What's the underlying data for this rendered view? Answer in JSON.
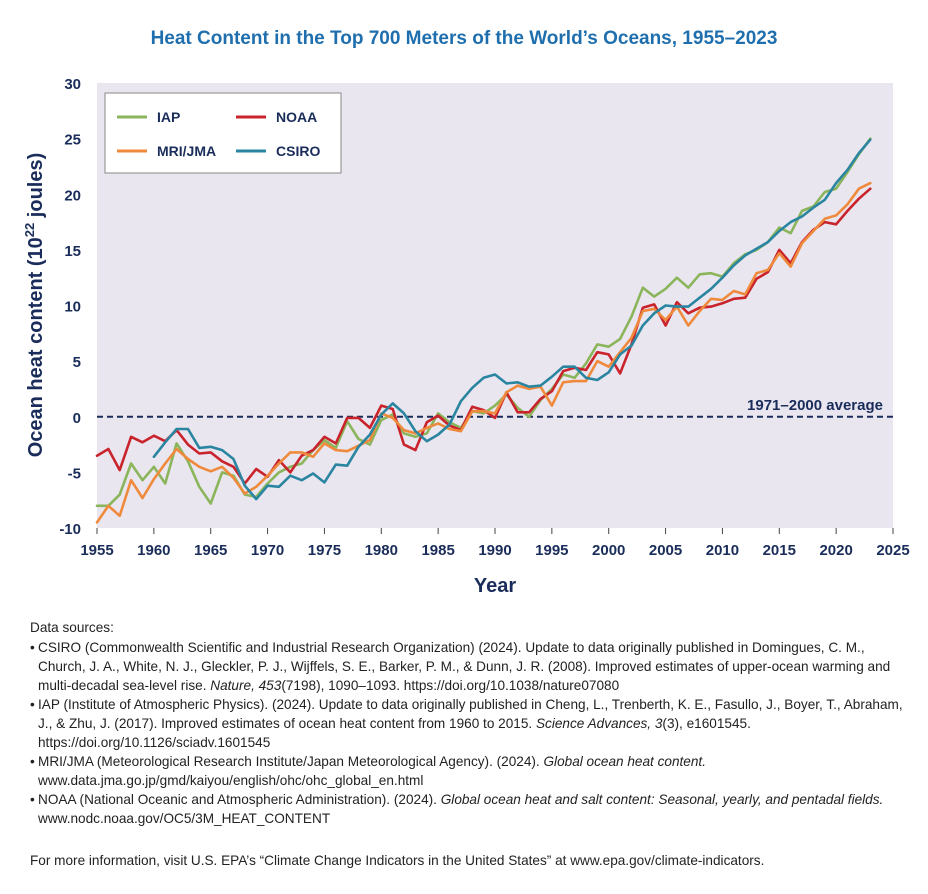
{
  "title": "Heat Content in the Top 700 Meters of the World’s Oceans, 1955–2023",
  "chart_data": {
    "type": "line",
    "title": "Heat Content in the Top 700 Meters of the World’s Oceans, 1955–2023",
    "xlabel": "Year",
    "ylabel": "Ocean heat content (10",
    "ylabel_sup": "22",
    "ylabel_end": " joules)",
    "xlim": [
      1955,
      2025
    ],
    "ylim": [
      -10,
      30
    ],
    "x_ticks": [
      1955,
      1960,
      1965,
      1970,
      1975,
      1980,
      1985,
      1990,
      1995,
      2000,
      2005,
      2010,
      2015,
      2020,
      2025
    ],
    "y_ticks": [
      -10,
      -5,
      0,
      5,
      10,
      15,
      20,
      25,
      30
    ],
    "grid": false,
    "legend_position": "top-left",
    "reference_line": {
      "value": 0,
      "label": "1971–2000 average",
      "color": "#1a2d5a"
    },
    "series": [
      {
        "name": "IAP",
        "color": "#8bb55b",
        "start": 1955,
        "values": [
          -8.0,
          -8.0,
          -7.0,
          -4.2,
          -5.7,
          -4.5,
          -6.0,
          -2.4,
          -4.0,
          -6.3,
          -7.8,
          -5.0,
          -5.3,
          -7.0,
          -7.2,
          -6.0,
          -5.0,
          -4.5,
          -4.2,
          -3.0,
          -2.1,
          -2.8,
          -0.4,
          -2.0,
          -2.5,
          -0.3,
          0.2,
          -1.5,
          -1.8,
          -1.5,
          0.3,
          -0.5,
          -1.0,
          0.5,
          0.3,
          1.0,
          2.0,
          0.8,
          0.0,
          1.5,
          2.5,
          3.8,
          3.5,
          4.8,
          6.5,
          6.3,
          7.0,
          9.0,
          11.6,
          10.8,
          11.5,
          12.5,
          11.6,
          12.8,
          12.9,
          12.6,
          13.8,
          14.6,
          15.0,
          15.7,
          17.0,
          16.5,
          18.5,
          18.9,
          20.2,
          20.5,
          22.0,
          23.6,
          25.0
        ]
      },
      {
        "name": "NOAA",
        "color": "#c9232c",
        "start": 1955,
        "values": [
          -3.5,
          -2.9,
          -4.8,
          -1.8,
          -2.3,
          -1.7,
          -2.2,
          -1.2,
          -2.5,
          -3.3,
          -3.2,
          -4.0,
          -4.5,
          -6.0,
          -4.7,
          -5.4,
          -3.9,
          -5.0,
          -3.5,
          -3.0,
          -1.8,
          -2.4,
          -0.1,
          -0.1,
          -1.0,
          1.0,
          0.7,
          -2.5,
          -3.0,
          -0.5,
          0.1,
          -0.8,
          -1.2,
          0.9,
          0.6,
          -0.1,
          2.2,
          0.4,
          0.4,
          1.6,
          2.3,
          4.1,
          4.4,
          4.2,
          5.8,
          5.6,
          3.9,
          6.5,
          9.8,
          10.1,
          8.2,
          10.3,
          9.3,
          9.8,
          9.9,
          10.2,
          10.6,
          10.7,
          12.4,
          13.0,
          15.0,
          13.8,
          15.7,
          16.8,
          17.5,
          17.3,
          18.5,
          19.6,
          20.5
        ]
      },
      {
        "name": "MRI/JMA",
        "color": "#ef8a3c",
        "start": 1955,
        "values": [
          -9.5,
          -8.0,
          -8.9,
          -5.7,
          -7.3,
          -5.6,
          -4.2,
          -2.9,
          -3.8,
          -4.5,
          -4.9,
          -4.5,
          -5.5,
          -6.9,
          -6.3,
          -5.3,
          -4.2,
          -3.2,
          -3.2,
          -3.6,
          -2.4,
          -3.0,
          -3.1,
          -2.6,
          -2.1,
          0.3,
          -0.1,
          -1.2,
          -1.5,
          -1.0,
          -0.6,
          -1.1,
          -1.3,
          0.5,
          0.5,
          0.3,
          2.2,
          2.8,
          2.5,
          2.7,
          1.0,
          3.1,
          3.2,
          3.2,
          5.0,
          4.5,
          5.8,
          7.1,
          9.5,
          9.7,
          8.7,
          9.9,
          8.2,
          9.5,
          10.6,
          10.5,
          11.3,
          11.0,
          12.9,
          13.2,
          14.7,
          13.5,
          15.6,
          16.7,
          17.8,
          18.1,
          19.1,
          20.5,
          21.0
        ]
      },
      {
        "name": "CSIRO",
        "color": "#2a85a0",
        "start": 1960,
        "values": [
          -3.6,
          -2.3,
          -1.1,
          -1.1,
          -2.8,
          -2.7,
          -3.0,
          -3.8,
          -6.2,
          -7.4,
          -6.2,
          -6.3,
          -5.3,
          -5.7,
          -5.1,
          -5.9,
          -4.3,
          -4.4,
          -2.7,
          -1.6,
          0.2,
          1.2,
          0.3,
          -1.3,
          -2.2,
          -1.6,
          -0.7,
          1.4,
          2.6,
          3.5,
          3.8,
          3.0,
          3.1,
          2.7,
          2.8,
          3.6,
          4.5,
          4.5,
          3.5,
          3.3,
          4.0,
          5.6,
          6.4,
          8.2,
          9.3,
          10.0,
          9.9,
          9.9,
          10.7,
          11.5,
          12.5,
          13.6,
          14.5,
          15.1,
          15.7,
          16.7,
          17.5,
          18.0,
          18.8,
          19.5,
          21.0,
          22.2,
          23.7,
          24.9
        ]
      }
    ]
  },
  "sources": {
    "header": "Data sources:",
    "items": [
      {
        "pre": "CSIRO (Commonwealth Scientific and Industrial Research Organization) (2024). Update to data originally published in Domingues, C. M., Church, J. A., White, N. J., Gleckler, P. J., Wijffels, S. E., Barker, P. M., & Dunn, J. R. (2008). Improved estimates of upper-ocean warming and multi-decadal sea-level rise. ",
        "em": "Nature, 453",
        "post": "(7198), 1090–1093. https://doi.org/10.1038/nature07080"
      },
      {
        "pre": "IAP (Institute of Atmospheric Physics). (2024). Update to data originally published in Cheng, L., Trenberth, K. E., Fasullo, J., Boyer, T., Abraham, J., & Zhu, J. (2017). Improved estimates of ocean heat content from 1960 to 2015. ",
        "em": "Science Advances, 3",
        "post": "(3), e1601545. https://doi.org/10.1126/sciadv.1601545"
      },
      {
        "pre": "MRI/JMA (Meteorological Research Institute/Japan Meteorological Agency). (2024). ",
        "em": "Global ocean heat content.",
        "post": " www.data.jma.go.jp/gmd/kaiyou/english/ohc/ohc_global_en.html"
      },
      {
        "pre": "NOAA (National Oceanic and Atmospheric Administration). (2024). ",
        "em": "Global ocean heat and salt content: Seasonal, yearly, and pentadal fields.",
        "post": " www.nodc.noaa.gov/OC5/3M_HEAT_CONTENT"
      }
    ],
    "more_info": "For more information, visit U.S. EPA’s “Climate Change Indicators in the United States” at www.epa.gov/climate-indicators."
  }
}
